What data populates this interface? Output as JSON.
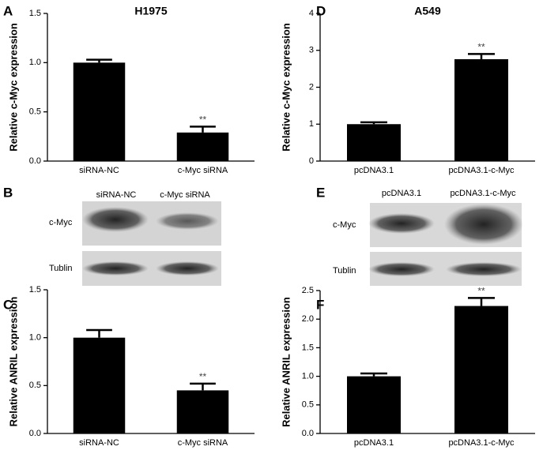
{
  "chart_data": [
    {
      "type": "bar",
      "panel": "A",
      "title": "H1975",
      "y_label": "Relative c-Myc expression",
      "categories": [
        "siRNA-NC",
        "c-Myc siRNA"
      ],
      "values": [
        1.0,
        0.29
      ],
      "errors": [
        0.03,
        0.06
      ],
      "color": "#000000",
      "annotations": [
        null,
        "**"
      ],
      "ylim": [
        0,
        1.5
      ],
      "yticks": [
        {
          "value": 0,
          "label": "0.0"
        },
        {
          "value": 0.5,
          "label": "0.5"
        },
        {
          "value": 1,
          "label": "1.0"
        },
        {
          "value": 1.5,
          "label": "1.5"
        }
      ]
    },
    {
      "type": "bar",
      "panel": "D",
      "title": "A549",
      "y_label": "Relative c-Myc expression",
      "categories": [
        "pcDNA3.1",
        "pcDNA3.1-c-Myc"
      ],
      "values": [
        1.0,
        2.76
      ],
      "errors": [
        0.05,
        0.14
      ],
      "color": "#000000",
      "annotations": [
        null,
        "**"
      ],
      "ylim": [
        0,
        4
      ],
      "yticks": [
        0,
        1,
        2,
        3,
        4
      ]
    },
    {
      "type": "bar",
      "panel": "C",
      "y_label": "Relative ANRIL expression",
      "categories": [
        "siRNA-NC",
        "c-Myc siRNA"
      ],
      "values": [
        1.0,
        0.45
      ],
      "errors": [
        0.08,
        0.07
      ],
      "color": "#000000",
      "annotations": [
        null,
        "**"
      ],
      "ylim": [
        0,
        1.5
      ],
      "yticks": [
        {
          "value": 0,
          "label": "0.0"
        },
        {
          "value": 0.5,
          "label": "0.5"
        },
        {
          "value": 1,
          "label": "1.0"
        },
        {
          "value": 1.5,
          "label": "1.5"
        }
      ]
    },
    {
      "type": "bar",
      "panel": "F",
      "y_label": "Relative ANRIL expression",
      "categories": [
        "pcDNA3.1",
        "pcDNA3.1-c-Myc"
      ],
      "values": [
        1.0,
        2.23
      ],
      "errors": [
        0.05,
        0.14
      ],
      "color": "#000000",
      "annotations": [
        null,
        "**"
      ],
      "ylim": [
        0,
        2.5
      ],
      "yticks": [
        {
          "value": 0,
          "label": "0.0"
        },
        {
          "value": 0.5,
          "label": "0.5"
        },
        {
          "value": 1,
          "label": "1.0"
        },
        {
          "value": 1.5,
          "label": "1.5"
        },
        {
          "value": 2,
          "label": "2.0"
        },
        {
          "value": 2.5,
          "label": "2.5"
        }
      ]
    }
  ],
  "blots": [
    {
      "panel": "B",
      "lanes": [
        "siRNA-NC",
        "c-Myc siRNA"
      ],
      "rows": [
        "c-Myc",
        "Tublin"
      ]
    },
    {
      "panel": "E",
      "lanes": [
        "pcDNA3.1",
        "pcDNA3.1-c-Myc"
      ],
      "rows": [
        "c-Myc",
        "Tublin"
      ]
    }
  ]
}
